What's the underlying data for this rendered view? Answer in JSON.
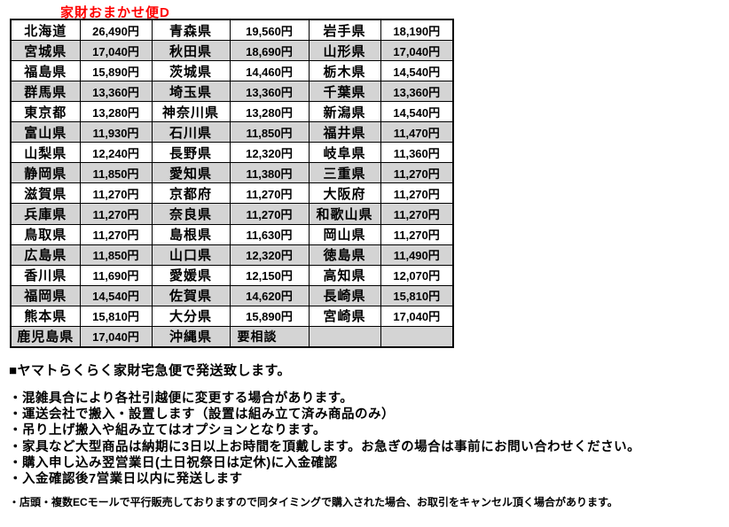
{
  "title": "家財おまかせ便D",
  "colors": {
    "title_red": "#ff0000",
    "row_alternate_gray": "#d4d4d4",
    "border_black": "#000000"
  },
  "table": {
    "columns": [
      "prefecture",
      "price",
      "prefecture",
      "price",
      "prefecture",
      "price"
    ],
    "rows": [
      [
        {
          "pref": "北海道",
          "price": "26,490円"
        },
        {
          "pref": "青森県",
          "price": "19,560円"
        },
        {
          "pref": "岩手県",
          "price": "18,190円"
        }
      ],
      [
        {
          "pref": "宮城県",
          "price": "17,040円"
        },
        {
          "pref": "秋田県",
          "price": "18,690円"
        },
        {
          "pref": "山形県",
          "price": "17,040円"
        }
      ],
      [
        {
          "pref": "福島県",
          "price": "15,890円"
        },
        {
          "pref": "茨城県",
          "price": "14,460円"
        },
        {
          "pref": "栃木県",
          "price": "14,540円"
        }
      ],
      [
        {
          "pref": "群馬県",
          "price": "13,360円"
        },
        {
          "pref": "埼玉県",
          "price": "13,360円"
        },
        {
          "pref": "千葉県",
          "price": "13,360円"
        }
      ],
      [
        {
          "pref": "東京都",
          "price": "13,280円"
        },
        {
          "pref": "神奈川県",
          "price": "13,280円"
        },
        {
          "pref": "新潟県",
          "price": "14,540円"
        }
      ],
      [
        {
          "pref": "富山県",
          "price": "11,930円"
        },
        {
          "pref": "石川県",
          "price": "11,850円"
        },
        {
          "pref": "福井県",
          "price": "11,470円"
        }
      ],
      [
        {
          "pref": "山梨県",
          "price": "12,240円"
        },
        {
          "pref": "長野県",
          "price": "12,320円"
        },
        {
          "pref": "岐阜県",
          "price": "11,360円"
        }
      ],
      [
        {
          "pref": "静岡県",
          "price": "11,850円"
        },
        {
          "pref": "愛知県",
          "price": "11,380円"
        },
        {
          "pref": "三重県",
          "price": "11,270円"
        }
      ],
      [
        {
          "pref": "滋賀県",
          "price": "11,270円"
        },
        {
          "pref": "京都府",
          "price": "11,270円"
        },
        {
          "pref": "大阪府",
          "price": "11,270円"
        }
      ],
      [
        {
          "pref": "兵庫県",
          "price": "11,270円"
        },
        {
          "pref": "奈良県",
          "price": "11,270円"
        },
        {
          "pref": "和歌山県",
          "price": "11,270円"
        }
      ],
      [
        {
          "pref": "鳥取県",
          "price": "11,270円"
        },
        {
          "pref": "島根県",
          "price": "11,630円"
        },
        {
          "pref": "岡山県",
          "price": "11,270円"
        }
      ],
      [
        {
          "pref": "広島県",
          "price": "11,850円"
        },
        {
          "pref": "山口県",
          "price": "12,320円"
        },
        {
          "pref": "徳島県",
          "price": "11,490円"
        }
      ],
      [
        {
          "pref": "香川県",
          "price": "11,690円"
        },
        {
          "pref": "愛媛県",
          "price": "12,150円"
        },
        {
          "pref": "高知県",
          "price": "12,070円"
        }
      ],
      [
        {
          "pref": "福岡県",
          "price": "14,540円"
        },
        {
          "pref": "佐賀県",
          "price": "14,620円"
        },
        {
          "pref": "長崎県",
          "price": "15,810円"
        }
      ],
      [
        {
          "pref": "熊本県",
          "price": "15,810円"
        },
        {
          "pref": "大分県",
          "price": "15,890円"
        },
        {
          "pref": "宮崎県",
          "price": "17,040円"
        }
      ],
      [
        {
          "pref": "鹿児島県",
          "price": "17,040円"
        },
        {
          "pref": "沖縄県",
          "price": "要相談"
        },
        {
          "pref": "",
          "price": ""
        }
      ]
    ]
  },
  "notes": {
    "heading": "■ヤマトらくらく家財宅急便で発送致します。",
    "bullets": [
      "・混雑具合により各社引越便に変更する場合があります。",
      "・運送会社で搬入・設置します（設置は組み立て済み商品のみ）",
      "・吊り上げ搬入や組み立てはオプションとなります。",
      "・家具など大型商品は納期に3日以上お時間を頂戴します。お急ぎの場合は事前にお問い合わせください。",
      "・購入申し込み翌営業日(土日祝祭日は定休)に入金確認",
      "・入金確認後7営業日以内に発送します"
    ],
    "footnote": "・店頭・複数ECモールで平行販売しておりますので同タイミングで購入された場合、お取引をキャンセル頂く場合があります。"
  }
}
